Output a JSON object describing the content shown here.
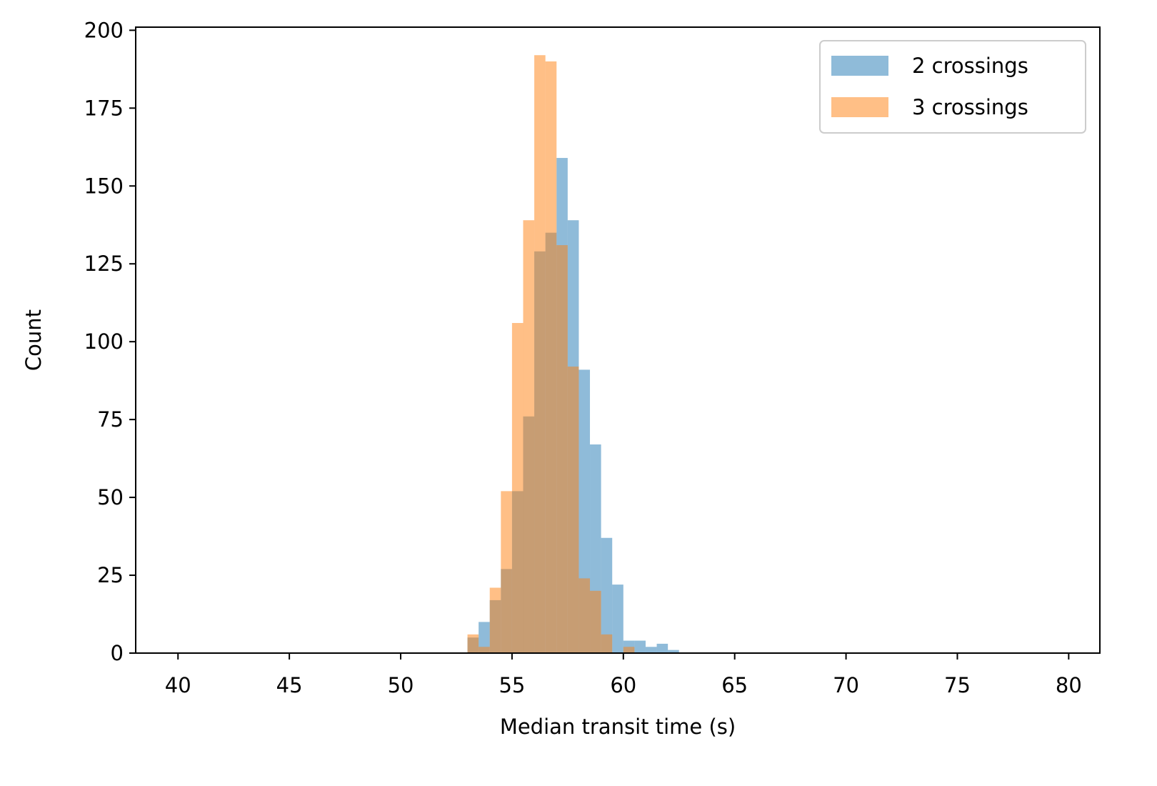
{
  "chart_data": {
    "type": "bar",
    "subtype": "histogram-overlay",
    "title": "",
    "xlabel": "Median transit time (s)",
    "ylabel": "Count",
    "xlim": [
      38.1,
      81.4
    ],
    "ylim": [
      0,
      201
    ],
    "xticks": [
      40,
      45,
      50,
      55,
      60,
      65,
      70,
      75,
      80
    ],
    "yticks": [
      0,
      25,
      50,
      75,
      100,
      125,
      150,
      175,
      200
    ],
    "grid": false,
    "legend_position": "top-right",
    "bin_edges": [
      53,
      53.5,
      54,
      54.5,
      55,
      55.5,
      56,
      56.5,
      57,
      57.5,
      58,
      58.5,
      59,
      59.5,
      60,
      60.5,
      61,
      61.5,
      62,
      62.5
    ],
    "series": [
      {
        "name": "2 crossings",
        "color": "#1f77b4",
        "values": [
          5,
          10,
          17,
          27,
          52,
          76,
          129,
          135,
          159,
          139,
          91,
          67,
          37,
          22,
          4,
          4,
          2,
          3,
          1
        ]
      },
      {
        "name": "3 crossings",
        "color": "#ff7f0e",
        "values": [
          6,
          2,
          21,
          52,
          106,
          139,
          192,
          190,
          131,
          92,
          24,
          20,
          6,
          0,
          2,
          0,
          0,
          0,
          0
        ]
      }
    ]
  }
}
